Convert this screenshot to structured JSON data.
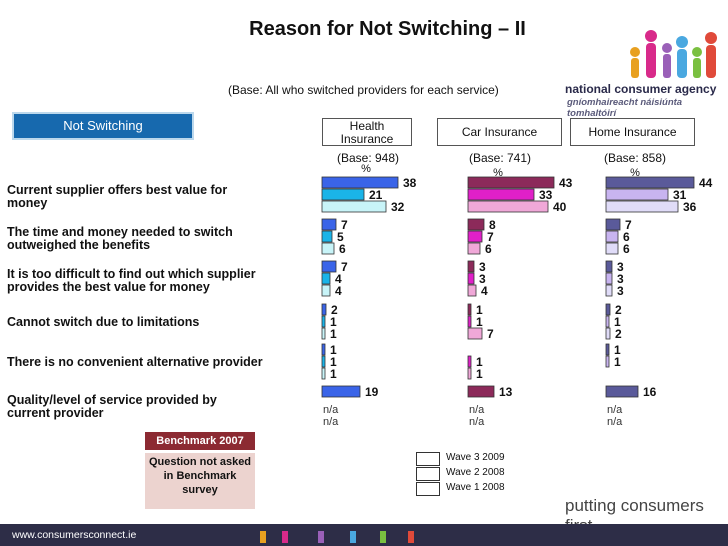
{
  "title": "Reason for Not Switching – II",
  "subtitle": "(Base: All who switched providers for each service)",
  "tab_label": "Not Switching",
  "logo": {
    "line1": "national consumer agency",
    "line2": "gníomhaireacht náisiúnta tomhaltóirí"
  },
  "services": [
    {
      "name": "Health Insurance",
      "base": "(Base: 948)",
      "unit": "%"
    },
    {
      "name": "Car Insurance",
      "base": "(Base: 741)",
      "unit": "%"
    },
    {
      "name": "Home Insurance",
      "base": "(Base: 858)",
      "unit": "%"
    }
  ],
  "reasons": [
    "Current supplier offers best value for money",
    "The time and money needed to switch outweighed the benefits",
    "It is too difficult to find out which supplier provides the best value for money",
    "Cannot switch due to limitations",
    "There is no convenient alternative provider",
    "Quality/level of service provided by current provider"
  ],
  "benchmark_label": "Benchmark 2007",
  "benchmark_note": "Question not asked in Benchmark survey",
  "legend": [
    "Wave 3 2009",
    "Wave 2 2008",
    "Wave 1 2008"
  ],
  "tagline": "putting consumers first",
  "footer_url": "www.consumersconnect.ie",
  "na_label": "n/a",
  "colors": {
    "health": [
      "#3a64e8",
      "#1ab4e8",
      "#c8f4f8"
    ],
    "car": [
      "#8c2a5a",
      "#e020c8",
      "#f0a8d8"
    ],
    "home": [
      "#5a5a9a",
      "#c8b4f0",
      "#e0dcf8"
    ]
  },
  "chart_data": {
    "type": "bar",
    "orientation": "horizontal",
    "title": "Reason for Not Switching – II",
    "categories": [
      "Current supplier offers best value for money",
      "The time and money needed to switch outweighed the benefits",
      "It is too difficult to find out which supplier provides the best value for money",
      "Cannot switch due to limitations",
      "There is no convenient alternative provider",
      "Quality/level of service provided by current provider"
    ],
    "panels": [
      {
        "name": "Health Insurance",
        "series": [
          {
            "name": "Wave 3 2009",
            "values": [
              38,
              7,
              7,
              2,
              1,
              19
            ]
          },
          {
            "name": "Wave 2 2008",
            "values": [
              21,
              5,
              4,
              1,
              1,
              null
            ]
          },
          {
            "name": "Wave 1 2008",
            "values": [
              32,
              6,
              4,
              1,
              1,
              null
            ]
          }
        ]
      },
      {
        "name": "Car Insurance",
        "series": [
          {
            "name": "Wave 3 2009",
            "values": [
              43,
              8,
              3,
              1,
              null,
              13
            ]
          },
          {
            "name": "Wave 2 2008",
            "values": [
              33,
              7,
              3,
              1,
              1,
              null
            ]
          },
          {
            "name": "Wave 1 2008",
            "values": [
              40,
              6,
              4,
              7,
              1,
              null
            ]
          }
        ]
      },
      {
        "name": "Home Insurance",
        "series": [
          {
            "name": "Wave 3 2009",
            "values": [
              44,
              7,
              3,
              2,
              1,
              16
            ]
          },
          {
            "name": "Wave 2 2008",
            "values": [
              31,
              6,
              3,
              1,
              1,
              null
            ]
          },
          {
            "name": "Wave 1 2008",
            "values": [
              36,
              6,
              3,
              2,
              null,
              null
            ]
          }
        ]
      }
    ],
    "xlim": [
      0,
      60
    ]
  }
}
